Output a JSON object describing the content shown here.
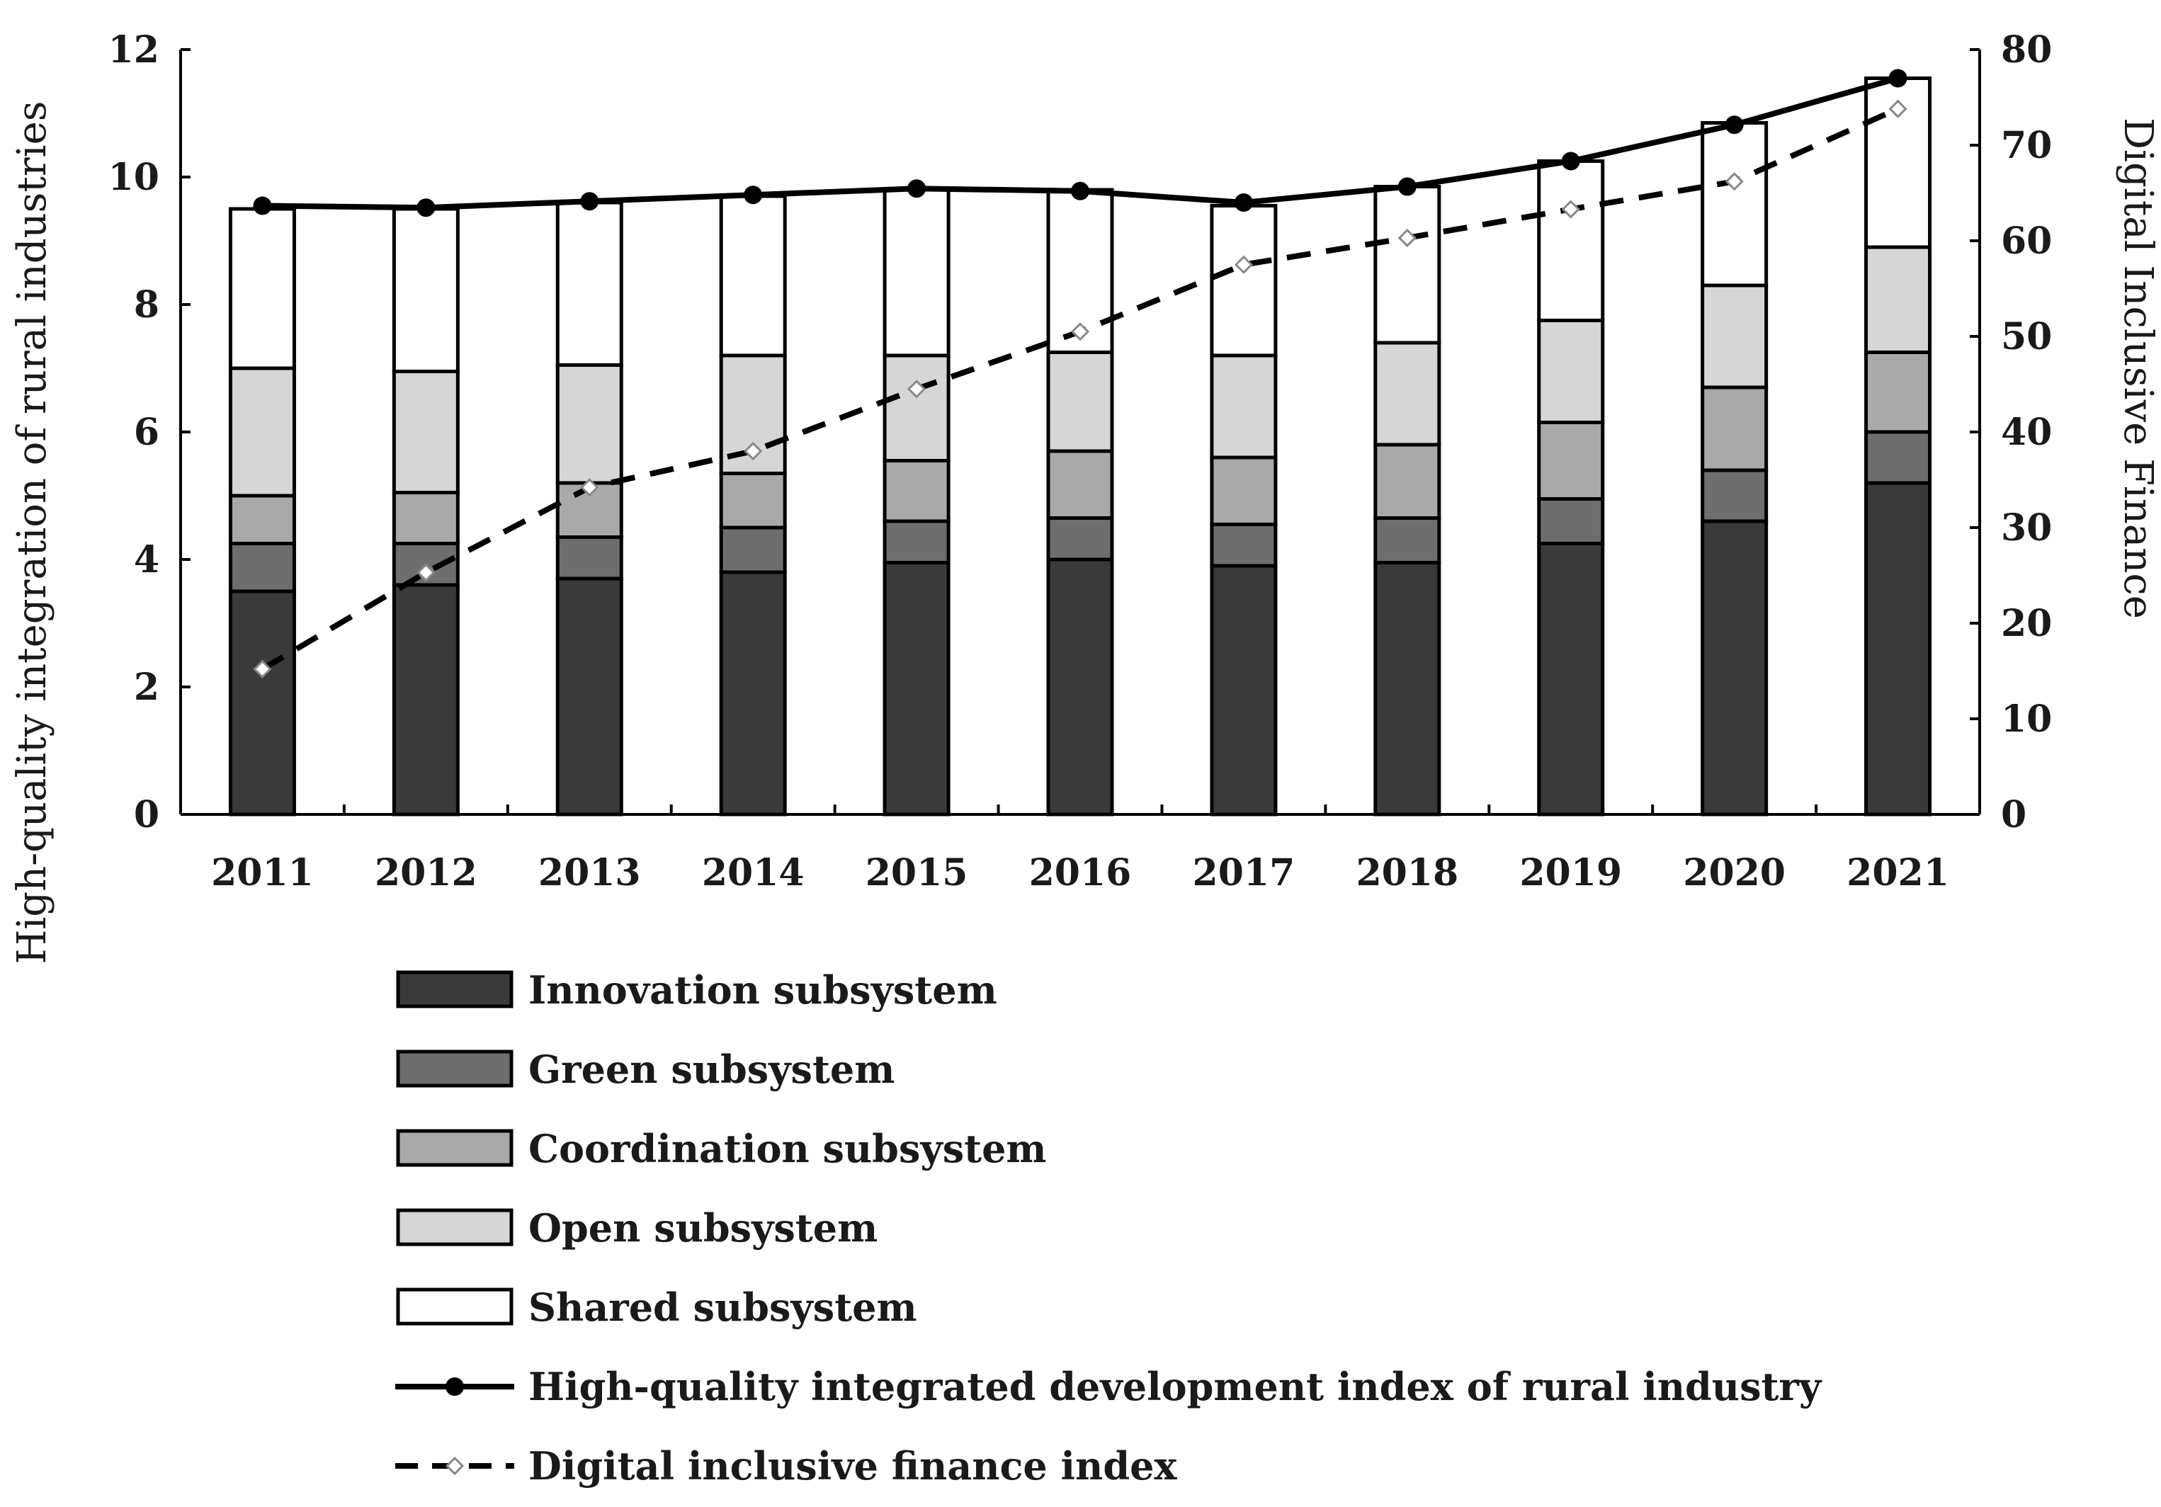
{
  "chart_data": {
    "type": "bar",
    "stacked": true,
    "categories": [
      "2011",
      "2012",
      "2013",
      "2014",
      "2015",
      "2016",
      "2017",
      "2018",
      "2019",
      "2020",
      "2021"
    ],
    "series": [
      {
        "name": "Innovation subsystem",
        "color": "#3a3a3a",
        "values": [
          3.5,
          3.6,
          3.7,
          3.8,
          3.95,
          4.0,
          3.9,
          3.95,
          4.25,
          4.6,
          5.2
        ]
      },
      {
        "name": "Green subsystem",
        "color": "#6e6e6e",
        "values": [
          0.75,
          0.65,
          0.65,
          0.7,
          0.65,
          0.65,
          0.65,
          0.7,
          0.7,
          0.8,
          0.8
        ]
      },
      {
        "name": "Coordination subsystem",
        "color": "#a9a9a9",
        "values": [
          0.75,
          0.8,
          0.85,
          0.85,
          0.95,
          1.05,
          1.05,
          1.15,
          1.2,
          1.3,
          1.25
        ]
      },
      {
        "name": "Open subsystem",
        "color": "#d6d6d6",
        "values": [
          2.0,
          1.9,
          1.85,
          1.85,
          1.65,
          1.55,
          1.6,
          1.6,
          1.6,
          1.6,
          1.65
        ]
      },
      {
        "name": "Shared subsystem",
        "color": "#ffffff",
        "values": [
          2.5,
          2.55,
          2.55,
          2.5,
          2.6,
          2.55,
          2.35,
          2.45,
          2.5,
          2.55,
          2.65
        ]
      }
    ],
    "lines": [
      {
        "name": "High-quality integrated development index of rural industry",
        "axis": "left",
        "style": "solid",
        "marker": "filled-circle",
        "color": "#000000",
        "values": [
          9.55,
          9.52,
          9.62,
          9.72,
          9.82,
          9.78,
          9.6,
          9.85,
          10.25,
          10.82,
          11.55
        ]
      },
      {
        "name": "Digital inclusive finance index",
        "axis": "right",
        "style": "dashed",
        "marker": "open-diamond",
        "color": "#000000",
        "values": [
          15.2,
          25.3,
          34.2,
          38.0,
          44.5,
          50.5,
          57.5,
          60.3,
          63.3,
          66.2,
          73.8
        ]
      }
    ],
    "y_left": {
      "label": "High-quality integration of rural industries",
      "min": 0,
      "max": 12,
      "ticks": [
        "0",
        "2",
        "4",
        "6",
        "8",
        "10",
        "12"
      ]
    },
    "y_right": {
      "label": "Digital Inclusive Finance",
      "min": 0,
      "max": 80,
      "ticks": [
        "0",
        "10",
        "20",
        "30",
        "40",
        "50",
        "60",
        "70",
        "80"
      ]
    },
    "x_label": "",
    "legend_position": "bottom"
  }
}
